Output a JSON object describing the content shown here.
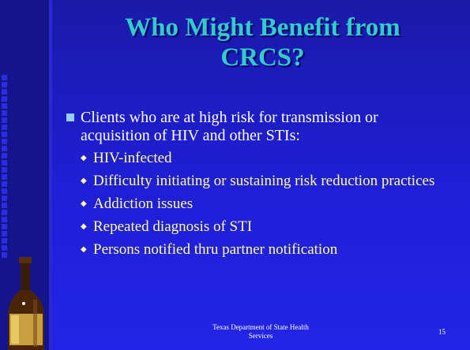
{
  "slide": {
    "title_lines": [
      "Who Might Benefit from",
      "CRCS?"
    ],
    "bullet": "Clients who are at high risk for transmission or acquisition of HIV and other STIs:",
    "sub_bullets": [
      "HIV-infected",
      "Difficulty initiating or sustaining risk reduction practices",
      "Addiction issues",
      "Repeated diagnosis of STI",
      "Persons notified thru partner notification"
    ],
    "footer": "Texas Department of State Health Services",
    "page_number": "15"
  }
}
